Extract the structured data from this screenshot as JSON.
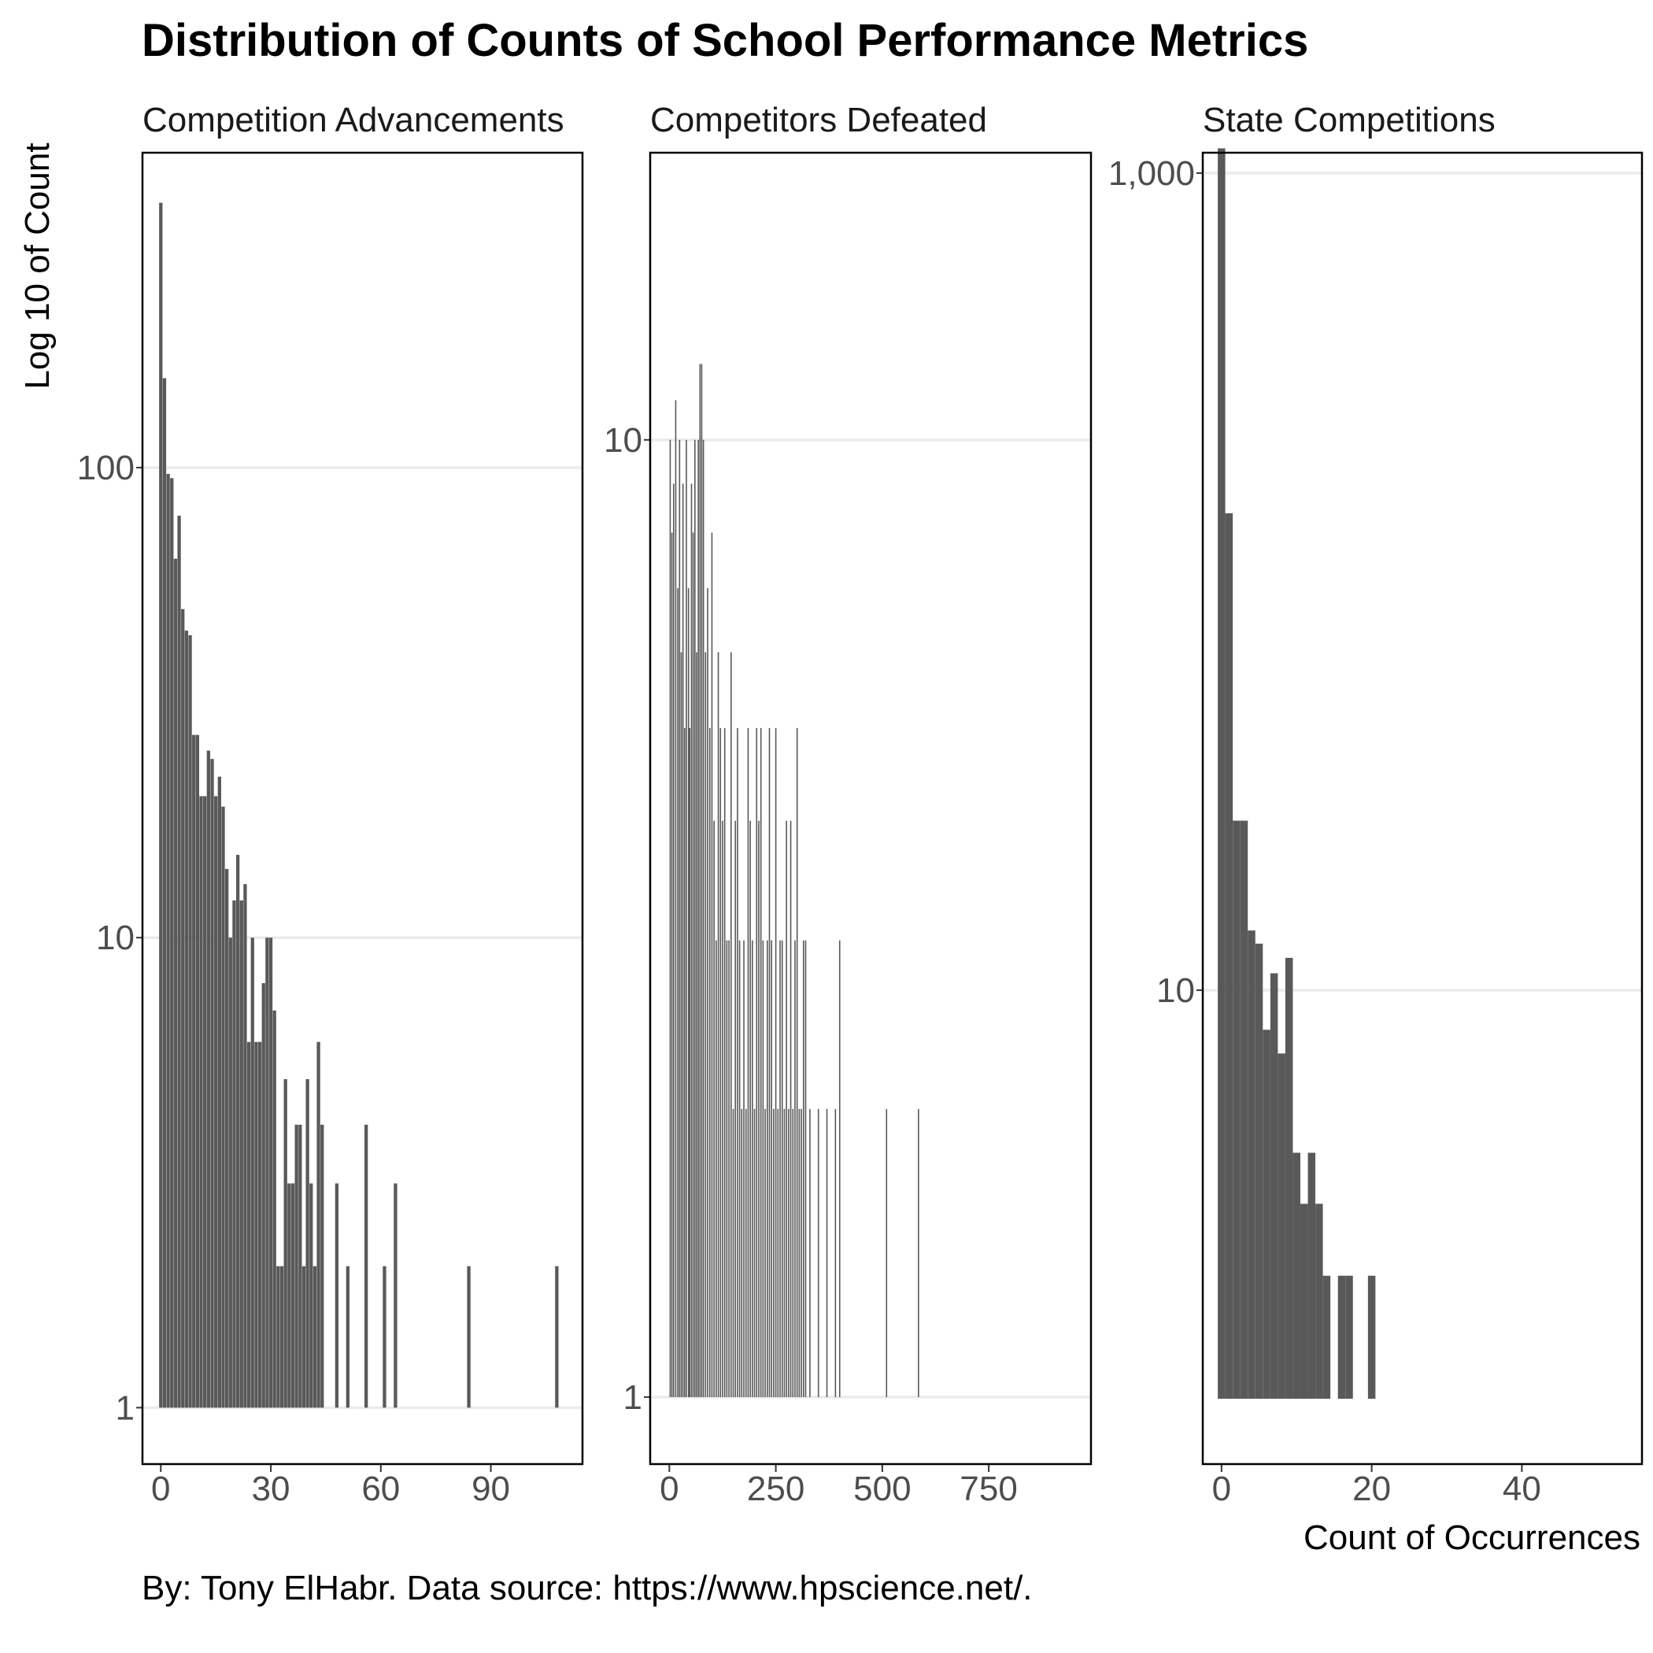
{
  "chart_data": {
    "type": "bar",
    "title": "Distribution of Counts of School Performance Metrics",
    "ylabel": "Log 10 of Count",
    "xlabel": "Count of Occurrences",
    "caption": "By: Tony ElHabr. Data source: https://www.hpscience.net/.",
    "y_scale": "log10",
    "grid": "horizontal major only",
    "bar_color": "#595959",
    "panels": [
      {
        "name": "Competition Advancements",
        "xlim": [
          -5,
          115
        ],
        "ylim_log10": [
          -0.12,
          2.67
        ],
        "x_ticks": [
          0,
          30,
          60,
          90
        ],
        "x_tick_labels": [
          "0",
          "30",
          "60",
          "90"
        ],
        "y_ticks": [
          1,
          10,
          100
        ],
        "y_tick_labels": [
          "1",
          "10",
          "100"
        ],
        "x": [
          0,
          1,
          2,
          3,
          4,
          5,
          6,
          7,
          8,
          9,
          10,
          11,
          12,
          13,
          14,
          15,
          16,
          17,
          18,
          19,
          20,
          21,
          22,
          23,
          24,
          25,
          26,
          27,
          28,
          29,
          30,
          31,
          32,
          33,
          34,
          35,
          36,
          37,
          38,
          39,
          40,
          41,
          42,
          43,
          44,
          48,
          51,
          56,
          61,
          64,
          84,
          108
        ],
        "counts": [
          366,
          155,
          97,
          95,
          64,
          79,
          50,
          45,
          44,
          27,
          27,
          20,
          20,
          25,
          24,
          20,
          22,
          19,
          14,
          10,
          12,
          15,
          12,
          13,
          6,
          10,
          6,
          6,
          8,
          10,
          10,
          7,
          2,
          2,
          5,
          3,
          3,
          4,
          4,
          2,
          5,
          3,
          2,
          6,
          4,
          3,
          2,
          4,
          2,
          3,
          2,
          2
        ]
      },
      {
        "name": "Competitors Defeated",
        "xlim": [
          -45,
          990
        ],
        "ylim_log10": [
          -0.07,
          1.3
        ],
        "x_ticks": [
          0,
          250,
          500,
          750
        ],
        "x_tick_labels": [
          "0",
          "250",
          "500",
          "750"
        ],
        "y_ticks": [
          1,
          10
        ],
        "y_tick_labels": [
          "1",
          "10"
        ],
        "x": [
          2,
          6,
          10,
          15,
          20,
          24,
          28,
          32,
          36,
          40,
          45,
          48,
          52,
          56,
          60,
          64,
          68,
          72,
          76,
          80,
          85,
          90,
          95,
          100,
          105,
          110,
          115,
          120,
          125,
          130,
          135,
          140,
          145,
          150,
          155,
          160,
          165,
          170,
          175,
          180,
          185,
          190,
          195,
          200,
          205,
          210,
          215,
          220,
          225,
          230,
          235,
          240,
          245,
          250,
          255,
          260,
          265,
          270,
          275,
          280,
          285,
          290,
          295,
          300,
          305,
          310,
          315,
          320,
          330,
          350,
          370,
          390,
          400,
          510,
          585
        ],
        "counts": [
          10,
          8,
          9,
          11,
          7,
          10,
          6,
          9,
          5,
          10,
          7,
          5,
          9,
          8,
          10,
          6,
          10,
          12,
          12,
          10,
          6,
          7,
          5,
          8,
          4,
          3,
          6,
          5,
          4,
          5,
          3,
          3,
          6,
          2,
          4,
          5,
          3,
          2,
          3,
          2,
          5,
          4,
          3,
          2,
          5,
          4,
          5,
          3,
          2,
          3,
          5,
          3,
          2,
          5,
          2,
          3,
          3,
          2,
          4,
          2,
          4,
          2,
          3,
          5,
          2,
          2,
          3,
          3,
          2,
          2,
          2,
          2,
          3,
          2,
          2
        ]
      },
      {
        "name": "State Competitions",
        "xlim": [
          -2.5,
          56
        ],
        "ylim_log10": [
          -0.16,
          3.05
        ],
        "x_ticks": [
          0,
          20,
          40
        ],
        "x_tick_labels": [
          "0",
          "20",
          "40"
        ],
        "y_ticks": [
          10,
          1000
        ],
        "y_tick_labels": [
          "10",
          "1,000"
        ],
        "x": [
          0,
          1,
          2,
          3,
          4,
          5,
          6,
          7,
          8,
          9,
          10,
          11,
          12,
          13,
          14,
          15,
          16,
          17,
          18,
          20,
          30
        ],
        "counts": [
          1150,
          147,
          26,
          26,
          14,
          13,
          8,
          11,
          7,
          12,
          4,
          3,
          4,
          3,
          2,
          1,
          2,
          2,
          1,
          2,
          1
        ]
      }
    ]
  }
}
